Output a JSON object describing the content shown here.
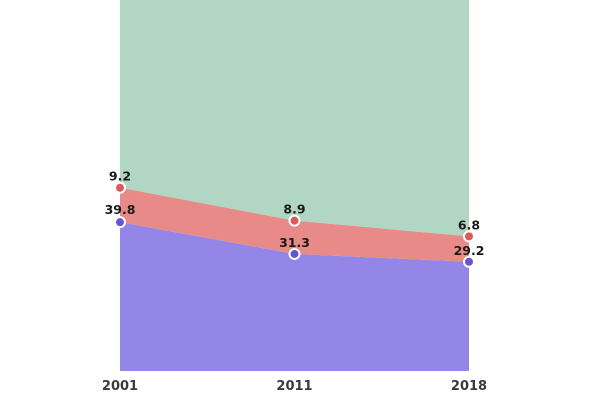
{
  "chart_data": {
    "type": "area",
    "stacked": true,
    "x": [
      "2001",
      "2011",
      "2018"
    ],
    "series": [
      {
        "values": [
          39.8,
          31.3,
          29.2
        ],
        "color": "#9486e6",
        "marker_color": "#6655cf"
      },
      {
        "values": [
          9.2,
          8.9,
          6.8
        ],
        "color": "#e88a87",
        "marker_color": "#dd5a5a"
      },
      {
        "values": [
          51.0,
          59.8,
          64.0
        ],
        "color": "#b1d6c3"
      }
    ],
    "ylim": [
      0,
      100
    ],
    "grid": false,
    "legend": "none"
  }
}
